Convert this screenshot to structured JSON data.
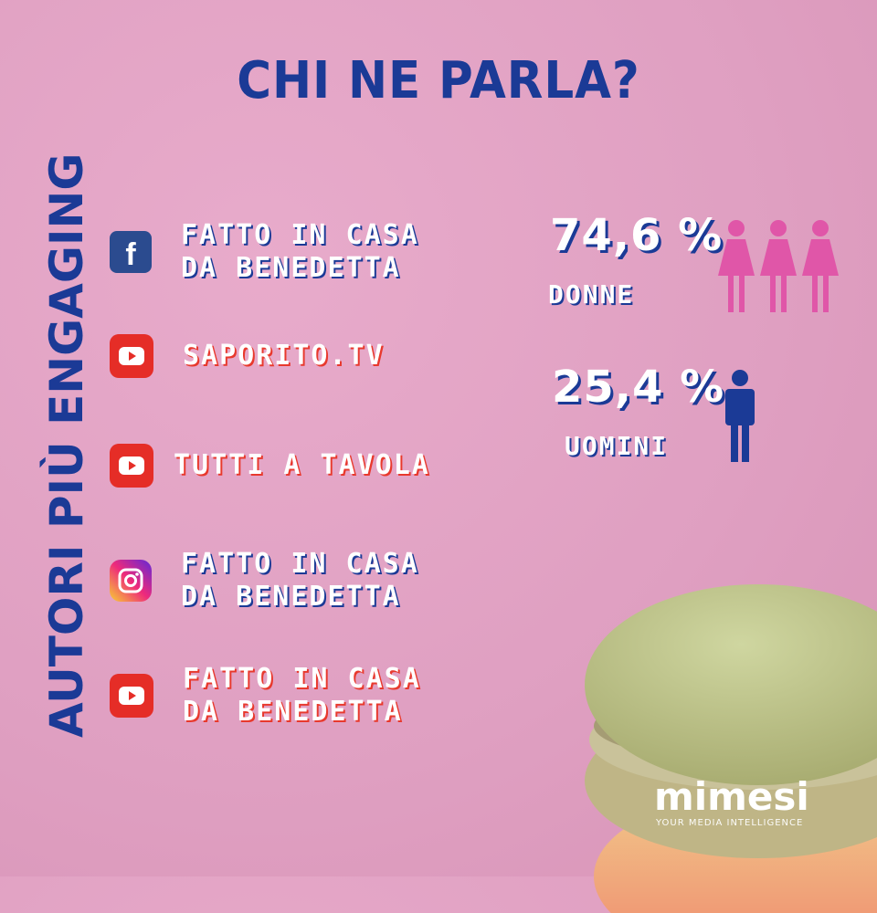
{
  "title": "CHI NE PARLA?",
  "vertical_heading": "AUTORI PIÙ ENGAGING",
  "authors": [
    {
      "platform": "facebook-icon",
      "line1": "FATTO IN CASA",
      "line2": "DA BENEDETTA"
    },
    {
      "platform": "youtube-icon",
      "line1": "SAPORITO.TV",
      "line2": ""
    },
    {
      "platform": "youtube-icon",
      "line1": "TUTTI A TAVOLA",
      "line2": ""
    },
    {
      "platform": "instagram-icon",
      "line1": "FATTO IN CASA",
      "line2": "DA BENEDETTA"
    },
    {
      "platform": "youtube-icon",
      "line1": "FATTO IN CASA",
      "line2": "DA BENEDETTA"
    }
  ],
  "stats": {
    "women": {
      "value": "74,6 %",
      "label": "DONNE",
      "color": "#e056a8"
    },
    "men": {
      "value": "25,4 %",
      "label": "UOMINI",
      "color": "#1b3a96"
    }
  },
  "brand": {
    "name": "mimesi",
    "tagline": "YOUR MEDIA INTELLIGENCE"
  },
  "colors": {
    "background": "#df9fc1",
    "accent": "#1b3a96",
    "highlight": "#e8392d"
  }
}
